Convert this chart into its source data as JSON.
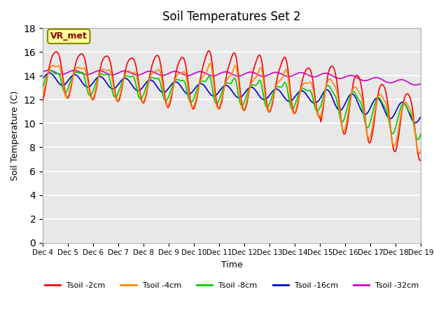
{
  "title": "Soil Temperatures Set 2",
  "xlabel": "Time",
  "ylabel": "Soil Temperature (C)",
  "annotation": "VR_met",
  "ylim": [
    0,
    18
  ],
  "yticks": [
    0,
    2,
    4,
    6,
    8,
    10,
    12,
    14,
    16,
    18
  ],
  "xtick_labels": [
    "Dec 4",
    "Dec 5",
    "Dec 6",
    "Dec 7",
    "Dec 8",
    "Dec 9",
    "Dec 10",
    "Dec 11",
    "Dec 12",
    "Dec 13",
    "Dec 14",
    "Dec 15",
    "Dec 16",
    "Dec 17",
    "Dec 18",
    "Dec 19"
  ],
  "colors": {
    "2cm": "#ff0000",
    "4cm": "#ff8800",
    "8cm": "#00cc00",
    "16cm": "#0000cc",
    "32cm": "#cc00cc"
  },
  "labels": {
    "2cm": "Tsoil -2cm",
    "4cm": "Tsoil -4cm",
    "8cm": "Tsoil -8cm",
    "16cm": "Tsoil -16cm",
    "32cm": "Tsoil -32cm"
  },
  "bg_color": "#f0f0f0",
  "plot_bg": "#e8e8e8",
  "grid_color": "#ffffff"
}
